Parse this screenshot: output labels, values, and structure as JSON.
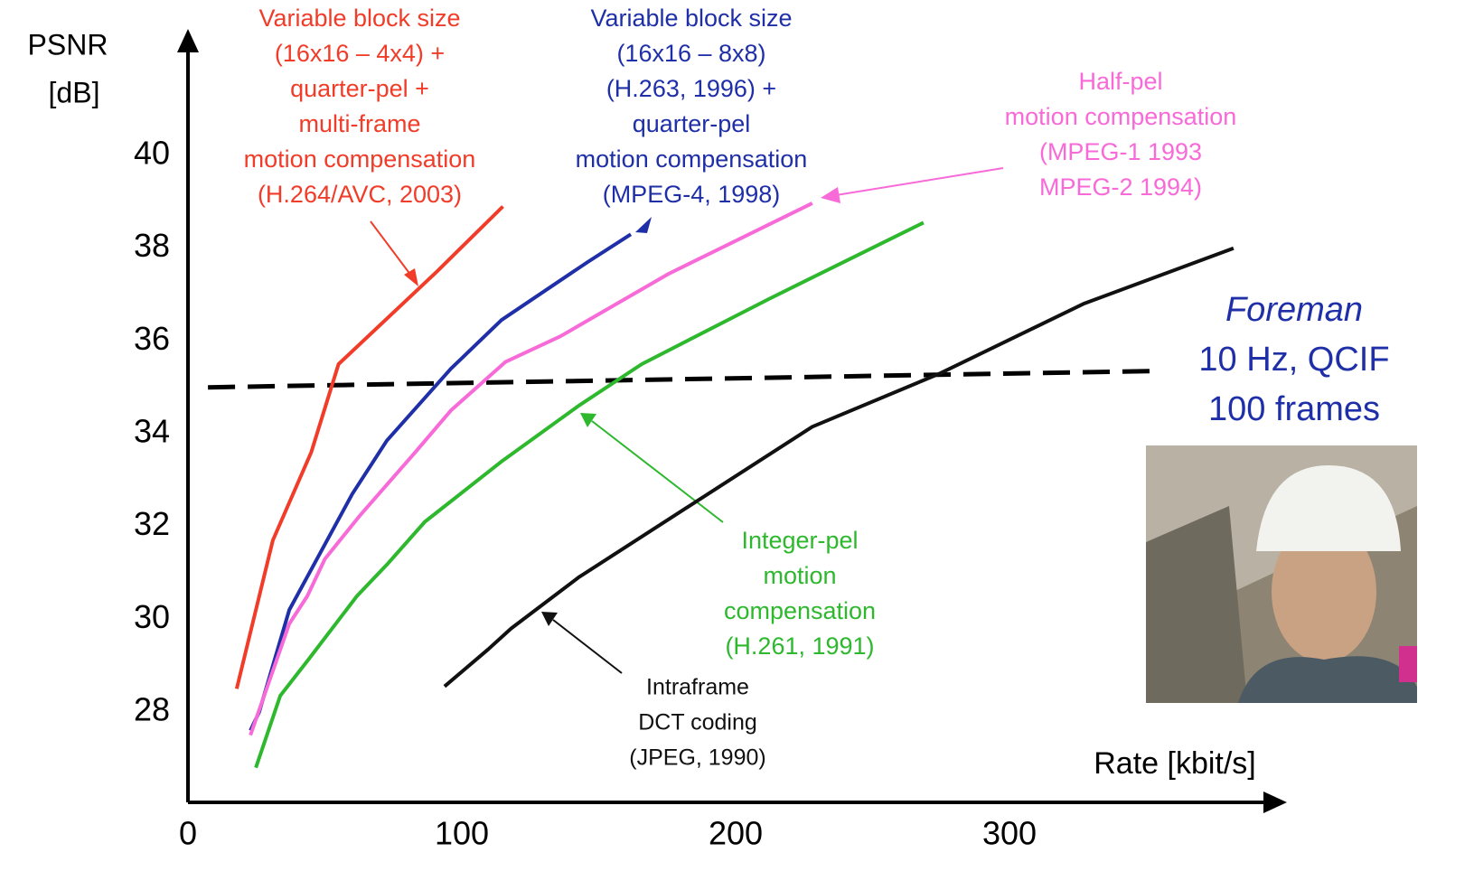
{
  "chart_data": {
    "type": "line",
    "y_label": [
      "PSNR",
      "[dB]"
    ],
    "x_label": "Rate [kbit/s]",
    "xlim": [
      0,
      400
    ],
    "ylim": [
      26.1,
      42.7
    ],
    "xticks": [
      0,
      100,
      200,
      300
    ],
    "yticks": [
      28,
      30,
      32,
      34,
      36,
      38,
      40
    ],
    "series": [
      {
        "color": "#f03c28",
        "x": [
          17.8,
          31,
          45,
          55,
          91,
          115
        ],
        "values": [
          28.5,
          31.7,
          33.6,
          35.5,
          37.5,
          38.9
        ]
      },
      {
        "color": "#1f2fa8",
        "x": [
          22.8,
          26,
          37,
          60,
          72.6,
          96,
          114.5,
          145.9,
          161.7
        ],
        "values": [
          27.6,
          28,
          30.2,
          32.7,
          33.85,
          35.4,
          36.45,
          37.7,
          38.3
        ]
      },
      {
        "color": "#f76ad8",
        "x": [
          22.8,
          37,
          43.6,
          50,
          63,
          83,
          96,
          116,
          136,
          175.6,
          228
        ],
        "values": [
          27.5,
          29.9,
          30.5,
          31.3,
          32.25,
          33.6,
          34.5,
          35.55,
          36.1,
          37.45,
          38.97
        ]
      },
      {
        "color": "#2db82d",
        "x": [
          24.8,
          33.7,
          43.6,
          61.7,
          73,
          86.5,
          114.5,
          142.6,
          165.7,
          212,
          268.6
        ],
        "values": [
          26.8,
          28.35,
          29.1,
          30.5,
          31.2,
          32.1,
          33.4,
          34.6,
          35.5,
          36.9,
          38.55
        ]
      },
      {
        "color": "#111111",
        "x": [
          93.7,
          109.6,
          118,
          142.6,
          182,
          228,
          274.6,
          327,
          381.8
        ],
        "values": [
          28.55,
          29.35,
          29.8,
          30.9,
          32.4,
          34.15,
          35.3,
          36.8,
          38.0
        ]
      }
    ],
    "reference_line": {
      "color": "#000000",
      "x": [
        7.3,
        352
      ],
      "values": [
        35.0,
        35.35
      ]
    },
    "annotations": [
      {
        "color": "#f03c28",
        "lines": [
          "Variable block size",
          "(16x16 – 4x4) +",
          "quarter-pel +",
          "multi-frame",
          "motion compensation",
          "(H.264/AVC, 2003)"
        ]
      },
      {
        "color": "#1f2fa8",
        "lines": [
          "Variable block size",
          "(16x16 – 8x8)",
          "(H.263, 1996) +",
          "quarter-pel",
          "motion compensation",
          "(MPEG-4, 1998)"
        ]
      },
      {
        "color": "#f76ad8",
        "lines": [
          "Half-pel",
          "motion compensation",
          "(MPEG-1 1993",
          " MPEG-2 1994)"
        ]
      },
      {
        "color": "#2db82d",
        "lines": [
          "Integer-pel",
          "motion",
          "compensation",
          "(H.261, 1991)"
        ]
      },
      {
        "color": "#111111",
        "lines": [
          "Intraframe",
          "DCT coding",
          "(JPEG, 1990)"
        ]
      }
    ],
    "sequence": {
      "color": "#1f2fa8",
      "name": "Foreman",
      "lines": [
        "10 Hz, QCIF",
        "100 frames"
      ]
    }
  }
}
